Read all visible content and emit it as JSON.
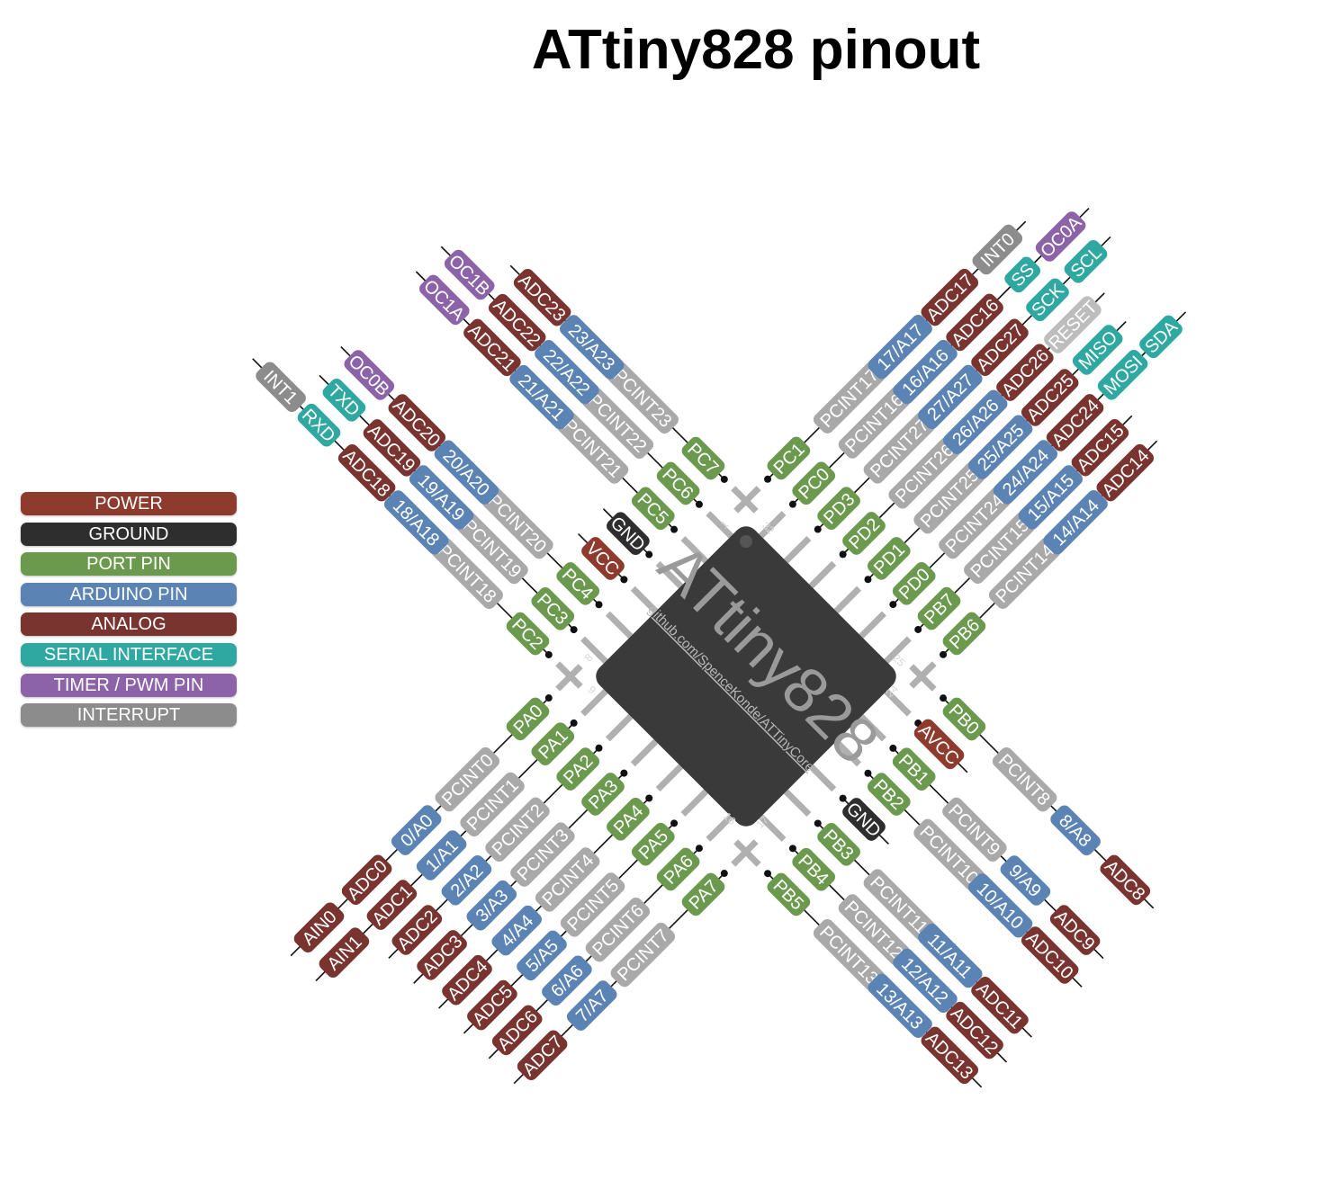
{
  "title": "ATtiny828 pinout",
  "chip": {
    "name": "ATtiny828",
    "url": "github.com/SpenceKonde/ATTinyCore",
    "pin_numbers": [
      "1",
      "32",
      "8",
      "9",
      "25",
      "24",
      "16",
      "17"
    ]
  },
  "legend": [
    {
      "label": "POWER",
      "color": "#8e3b2e"
    },
    {
      "label": "GROUND",
      "color": "#2e2e2e"
    },
    {
      "label": "PORT PIN",
      "color": "#6b9a4e"
    },
    {
      "label": "ARDUINO PIN",
      "color": "#5b84b4"
    },
    {
      "label": "ANALOG",
      "color": "#7a3430"
    },
    {
      "label": "SERIAL INTERFACE",
      "color": "#2fa8a2"
    },
    {
      "label": "TIMER / PWM PIN",
      "color": "#8c63a8"
    },
    {
      "label": "INTERRUPT",
      "color": "#8c8c8c"
    }
  ],
  "colors": {
    "power": "#8e3b2e",
    "ground": "#2e2e2e",
    "port": "#6b9a4e",
    "arduino": "#5b84b4",
    "analog": "#7a3430",
    "serial": "#2fa8a2",
    "timer": "#8c63a8",
    "interrupt": "#8c8c8c",
    "pcint": "#a9a9a9",
    "reset": "#bdbdbd",
    "chip": "#3a3a3a"
  },
  "pins": {
    "upper_left": [
      [
        {
          "t": "PC2",
          "c": "port"
        },
        {
          "t": "PCINT18",
          "c": "pcint"
        },
        {
          "t": "18/A18",
          "c": "arduino"
        },
        {
          "t": "ADC18",
          "c": "analog"
        },
        {
          "t": "RXD",
          "c": "serial"
        },
        {
          "t": "INT1",
          "c": "interrupt"
        }
      ],
      [
        {
          "t": "PC3",
          "c": "port"
        },
        {
          "t": "PCINT19",
          "c": "pcint"
        },
        {
          "t": "19/A19",
          "c": "arduino"
        },
        {
          "t": "ADC19",
          "c": "analog"
        },
        {
          "t": "TXD",
          "c": "serial"
        }
      ],
      [
        {
          "t": "PC4",
          "c": "port"
        },
        {
          "t": "PCINT20",
          "c": "pcint"
        },
        {
          "t": "20/A20",
          "c": "arduino"
        },
        {
          "t": "ADC20",
          "c": "analog"
        },
        {
          "t": "OC0B",
          "c": "timer"
        }
      ],
      [
        {
          "t": "VCC",
          "c": "power"
        }
      ],
      [
        {
          "t": "GND",
          "c": "ground"
        }
      ],
      [
        {
          "t": "PC5",
          "c": "port"
        },
        {
          "t": "PCINT21",
          "c": "pcint"
        },
        {
          "t": "21/A21",
          "c": "arduino"
        },
        {
          "t": "ADC21",
          "c": "analog"
        },
        {
          "t": "OC1A",
          "c": "timer"
        }
      ],
      [
        {
          "t": "PC6",
          "c": "port"
        },
        {
          "t": "PCINT22",
          "c": "pcint"
        },
        {
          "t": "22/A22",
          "c": "arduino"
        },
        {
          "t": "ADC22",
          "c": "analog"
        },
        {
          "t": "OC1B",
          "c": "timer"
        }
      ],
      [
        {
          "t": "PC7",
          "c": "port"
        },
        {
          "t": "PCINT23",
          "c": "pcint"
        },
        {
          "t": "23/A23",
          "c": "arduino"
        },
        {
          "t": "ADC23",
          "c": "analog"
        }
      ]
    ],
    "upper_right": [
      [
        {
          "t": "PC1",
          "c": "port"
        },
        {
          "t": "PCINT17",
          "c": "pcint"
        },
        {
          "t": "17/A17",
          "c": "arduino"
        },
        {
          "t": "ADC17",
          "c": "analog"
        },
        {
          "t": "INT0",
          "c": "interrupt"
        }
      ],
      [
        {
          "t": "PC0",
          "c": "port"
        },
        {
          "t": "PCINT16",
          "c": "pcint"
        },
        {
          "t": "16/A16",
          "c": "arduino"
        },
        {
          "t": "ADC16",
          "c": "analog"
        },
        {
          "t": "SS",
          "c": "serial"
        },
        {
          "t": "OC0A",
          "c": "timer"
        }
      ],
      [
        {
          "t": "PD3",
          "c": "port"
        },
        {
          "t": "PCINT27",
          "c": "pcint"
        },
        {
          "t": "27/A27",
          "c": "arduino"
        },
        {
          "t": "ADC27",
          "c": "analog"
        },
        {
          "t": "SCK",
          "c": "serial"
        },
        {
          "t": "SCL",
          "c": "serial"
        }
      ],
      [
        {
          "t": "PD2",
          "c": "port"
        },
        {
          "t": "PCINT26",
          "c": "pcint"
        },
        {
          "t": "26/A26",
          "c": "arduino"
        },
        {
          "t": "ADC26",
          "c": "analog"
        },
        {
          "t": "RESET",
          "c": "reset"
        }
      ],
      [
        {
          "t": "PD1",
          "c": "port"
        },
        {
          "t": "PCINT25",
          "c": "pcint"
        },
        {
          "t": "25/A25",
          "c": "arduino"
        },
        {
          "t": "ADC25",
          "c": "analog"
        },
        {
          "t": "MISO",
          "c": "serial"
        }
      ],
      [
        {
          "t": "PD0",
          "c": "port"
        },
        {
          "t": "PCINT24",
          "c": "pcint"
        },
        {
          "t": "24/A24",
          "c": "arduino"
        },
        {
          "t": "ADC24",
          "c": "analog"
        },
        {
          "t": "MOSI",
          "c": "serial"
        },
        {
          "t": "SDA",
          "c": "serial"
        }
      ],
      [
        {
          "t": "PB7",
          "c": "port"
        },
        {
          "t": "PCINT15",
          "c": "pcint"
        },
        {
          "t": "15/A15",
          "c": "arduino"
        },
        {
          "t": "ADC15",
          "c": "analog"
        }
      ],
      [
        {
          "t": "PB6",
          "c": "port"
        },
        {
          "t": "PCINT14",
          "c": "pcint"
        },
        {
          "t": "14/A14",
          "c": "arduino"
        },
        {
          "t": "ADC14",
          "c": "analog"
        }
      ]
    ],
    "lower_left": [
      [
        {
          "t": "PA0",
          "c": "port"
        },
        {
          "t": "PCINT0",
          "c": "pcint"
        },
        {
          "t": "0/A0",
          "c": "arduino"
        },
        {
          "t": "ADC0",
          "c": "analog"
        },
        {
          "t": "AIN0",
          "c": "analog"
        }
      ],
      [
        {
          "t": "PA1",
          "c": "port"
        },
        {
          "t": "PCINT1",
          "c": "pcint"
        },
        {
          "t": "1/A1",
          "c": "arduino"
        },
        {
          "t": "ADC1",
          "c": "analog"
        },
        {
          "t": "AIN1",
          "c": "analog"
        }
      ],
      [
        {
          "t": "PA2",
          "c": "port"
        },
        {
          "t": "PCINT2",
          "c": "pcint"
        },
        {
          "t": "2/A2",
          "c": "arduino"
        },
        {
          "t": "ADC2",
          "c": "analog"
        }
      ],
      [
        {
          "t": "PA3",
          "c": "port"
        },
        {
          "t": "PCINT3",
          "c": "pcint"
        },
        {
          "t": "3/A3",
          "c": "arduino"
        },
        {
          "t": "ADC3",
          "c": "analog"
        }
      ],
      [
        {
          "t": "PA4",
          "c": "port"
        },
        {
          "t": "PCINT4",
          "c": "pcint"
        },
        {
          "t": "4/A4",
          "c": "arduino"
        },
        {
          "t": "ADC4",
          "c": "analog"
        }
      ],
      [
        {
          "t": "PA5",
          "c": "port"
        },
        {
          "t": "PCINT5",
          "c": "pcint"
        },
        {
          "t": "5/A5",
          "c": "arduino"
        },
        {
          "t": "ADC5",
          "c": "analog"
        }
      ],
      [
        {
          "t": "PA6",
          "c": "port"
        },
        {
          "t": "PCINT6",
          "c": "pcint"
        },
        {
          "t": "6/A6",
          "c": "arduino"
        },
        {
          "t": "ADC6",
          "c": "analog"
        }
      ],
      [
        {
          "t": "PA7",
          "c": "port"
        },
        {
          "t": "PCINT7",
          "c": "pcint"
        },
        {
          "t": "7/A7",
          "c": "arduino"
        },
        {
          "t": "ADC7",
          "c": "analog"
        }
      ]
    ],
    "lower_right": [
      [
        {
          "t": "PB5",
          "c": "port"
        },
        {
          "t": "PCINT13",
          "c": "pcint"
        },
        {
          "t": "13/A13",
          "c": "arduino"
        },
        {
          "t": "ADC13",
          "c": "analog"
        }
      ],
      [
        {
          "t": "PB4",
          "c": "port"
        },
        {
          "t": "PCINT12",
          "c": "pcint"
        },
        {
          "t": "12/A12",
          "c": "arduino"
        },
        {
          "t": "ADC12",
          "c": "analog"
        }
      ],
      [
        {
          "t": "PB3",
          "c": "port"
        },
        {
          "t": "PCINT11",
          "c": "pcint"
        },
        {
          "t": "11/A11",
          "c": "arduino"
        },
        {
          "t": "ADC11",
          "c": "analog"
        }
      ],
      [
        {
          "t": "GND",
          "c": "ground"
        }
      ],
      [
        {
          "t": "PB2",
          "c": "port"
        },
        {
          "t": "PCINT10",
          "c": "pcint"
        },
        {
          "t": "10/A10",
          "c": "arduino"
        },
        {
          "t": "ADC10",
          "c": "analog"
        }
      ],
      [
        {
          "t": "PB1",
          "c": "port"
        },
        {
          "t": "PCINT9",
          "c": "pcint"
        },
        {
          "t": "9/A9",
          "c": "arduino"
        },
        {
          "t": "ADC9",
          "c": "analog"
        }
      ],
      [
        {
          "t": "AVCC",
          "c": "power"
        }
      ],
      [
        {
          "t": "PB0",
          "c": "port"
        },
        {
          "t": "PCINT8",
          "c": "pcint"
        },
        {
          "t": "8/A8",
          "c": "arduino"
        },
        {
          "t": "ADC8",
          "c": "analog"
        }
      ]
    ]
  }
}
